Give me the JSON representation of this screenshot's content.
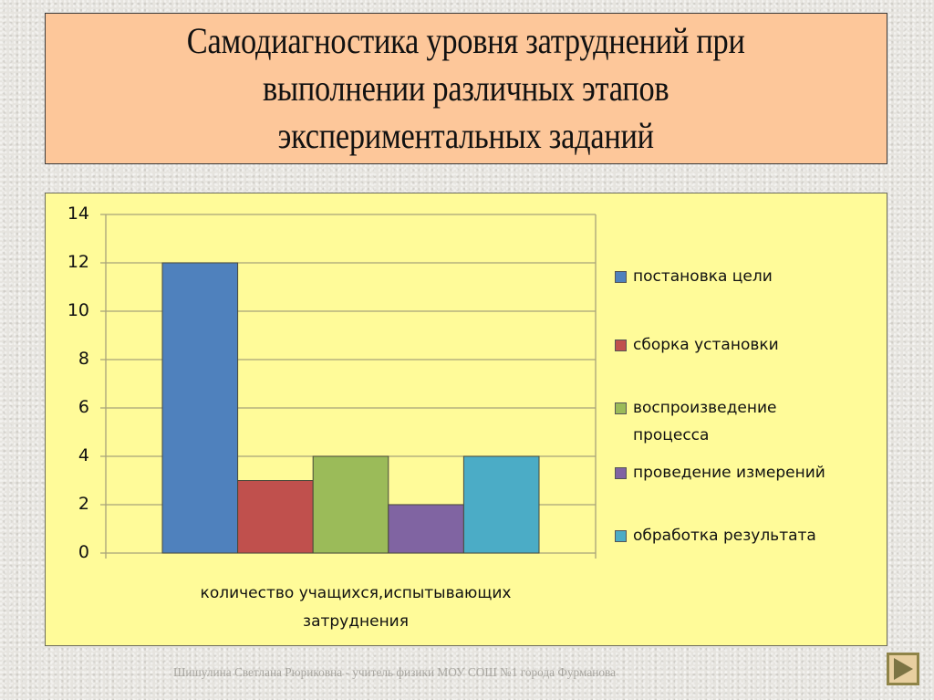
{
  "slide": {
    "title": "Самодиагностика уровня затруднений при\nвыполнении различных этапов\nэкспериментальных заданий",
    "footer": "Шишулина Светлана Рюриковна - учитель физики МОУ СОШ №1 города Фурманова",
    "nav_next_icon": "play-triangle-icon"
  },
  "colors": {
    "title_bg": "#fdc79a",
    "chart_bg": "#fffb99",
    "series": [
      "#4f81bd",
      "#c0504d",
      "#9bbb59",
      "#8064a2",
      "#4bacc6"
    ]
  },
  "chart_data": {
    "type": "bar",
    "title": "",
    "categories": [
      "количество учащихся,испытывающих затруднения"
    ],
    "xlabel": "количество учащихся,испытывающих затруднения",
    "ylabel": "",
    "ylim": [
      0,
      14
    ],
    "yticks": [
      "0",
      "2",
      "4",
      "6",
      "8",
      "10",
      "12",
      "14"
    ],
    "grid": true,
    "legend_position": "right",
    "series": [
      {
        "name": "постановка цели",
        "values": [
          12
        ],
        "color": "#4f81bd"
      },
      {
        "name": "сборка установки",
        "values": [
          3
        ],
        "color": "#c0504d"
      },
      {
        "name": "воспроизведение процесса",
        "values": [
          4
        ],
        "color": "#9bbb59"
      },
      {
        "name": "проведение измерений",
        "values": [
          2
        ],
        "color": "#8064a2"
      },
      {
        "name": "обработка результата",
        "values": [
          4
        ],
        "color": "#4bacc6"
      }
    ]
  }
}
